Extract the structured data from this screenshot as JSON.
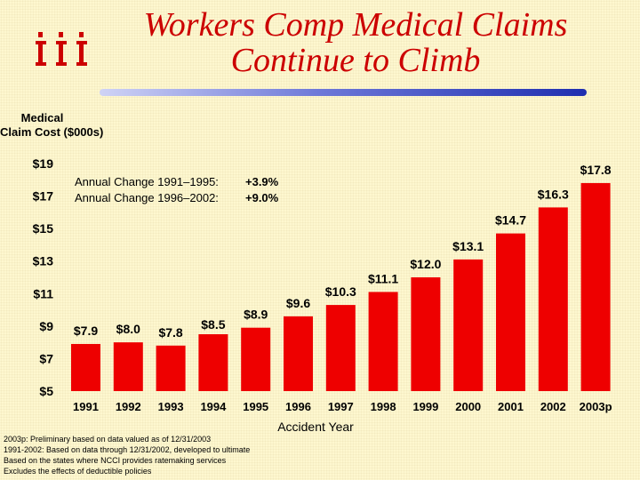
{
  "title_line1": "Workers Comp Medical Claims",
  "title_line2": "Continue to Climb",
  "y_axis_title_line1": "Medical",
  "y_axis_title_line2": "Claim Cost ($000s)",
  "annual_change": [
    {
      "label": "Annual Change 1991–1995:",
      "value": "+3.9%"
    },
    {
      "label": "Annual Change 1996–2002:",
      "value": "+9.0%"
    }
  ],
  "footnotes": [
    "2003p: Preliminary based on data valued as of 12/31/2003",
    "1991-2002: Based on data through 12/31/2002, developed to ultimate",
    "Based on the states where NCCI provides ratemaking services",
    "Excludes the effects of deductible policies"
  ],
  "colors": {
    "bar": "#ee0000",
    "title": "#cc0000",
    "logo": "#cc0000"
  },
  "chart_data": {
    "type": "bar",
    "title": "Workers Comp Medical Claims Continue to Climb",
    "xlabel": "Accident Year",
    "ylabel": "Medical Claim Cost ($000s)",
    "categories": [
      "1991",
      "1992",
      "1993",
      "1994",
      "1995",
      "1996",
      "1997",
      "1998",
      "1999",
      "2000",
      "2001",
      "2002",
      "2003p"
    ],
    "values": [
      7.9,
      8.0,
      7.8,
      8.5,
      8.9,
      9.6,
      10.3,
      11.1,
      12.0,
      13.1,
      14.7,
      16.3,
      17.8
    ],
    "data_labels": [
      "$7.9",
      "$8.0",
      "$7.8",
      "$8.5",
      "$8.9",
      "$9.6",
      "$10.3",
      "$11.1",
      "$12.0",
      "$13.1",
      "$14.7",
      "$16.3",
      "$17.8"
    ],
    "ylim": [
      5,
      19
    ],
    "yticks": [
      5,
      7,
      9,
      11,
      13,
      15,
      17,
      19
    ],
    "ytick_labels": [
      "$5",
      "$7",
      "$9",
      "$11",
      "$13",
      "$15",
      "$17",
      "$19"
    ],
    "grid": false
  }
}
